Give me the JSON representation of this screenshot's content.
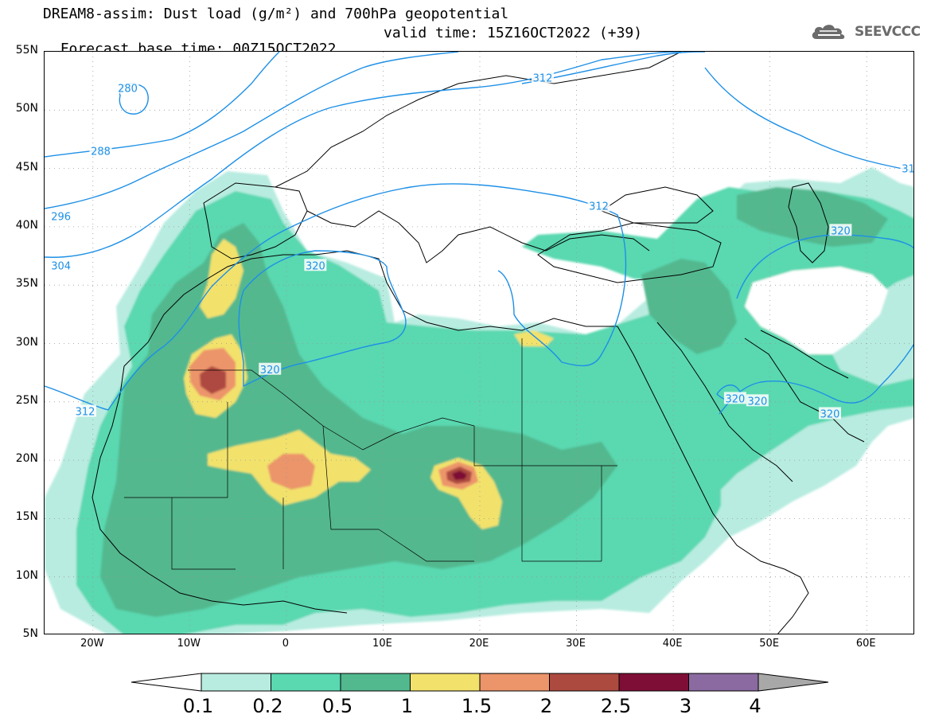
{
  "title": {
    "line1": "DREAM8-assim: Dust load (g/m²) and 700hPa geopotential",
    "line2_base": "Forecast base time: 00Z15OCT2022",
    "line2_valid": "valid time: 15Z16OCT2022 (+39)"
  },
  "logo": {
    "text": "SEEVCCC",
    "icon": "cloud-logo-icon",
    "color": "#6b6b6b"
  },
  "map": {
    "extent": {
      "lon": [
        -25,
        65
      ],
      "lat": [
        5,
        55
      ]
    },
    "lat_ticks": [
      "55N",
      "50N",
      "45N",
      "40N",
      "35N",
      "30N",
      "25N",
      "20N",
      "15N",
      "10N",
      "5N"
    ],
    "lat_values": [
      55,
      50,
      45,
      40,
      35,
      30,
      25,
      20,
      15,
      10,
      5
    ],
    "lon_ticks": [
      "20W",
      "10W",
      "0",
      "10E",
      "20E",
      "30E",
      "40E",
      "50E",
      "60E"
    ],
    "lon_values": [
      -20,
      -10,
      0,
      10,
      20,
      30,
      40,
      50,
      60
    ],
    "contour_color": "#1e90e6",
    "contour_labels": [
      {
        "text": "280",
        "lon": -16.4,
        "lat": 51.9
      },
      {
        "text": "288",
        "lon": -19.2,
        "lat": 46.5
      },
      {
        "text": "296",
        "lon": -23.3,
        "lat": 40.9
      },
      {
        "text": "304",
        "lon": -23.3,
        "lat": 36.7
      },
      {
        "text": "312",
        "lon": 26.5,
        "lat": 52.8
      },
      {
        "text": "312",
        "lon": 32.3,
        "lat": 41.8
      },
      {
        "text": "312",
        "lon": -20.8,
        "lat": 24.2
      },
      {
        "text": "320",
        "lon": 3.0,
        "lat": 36.7
      },
      {
        "text": "320",
        "lon": -1.7,
        "lat": 27.8
      },
      {
        "text": "320",
        "lon": 57.3,
        "lat": 39.7
      },
      {
        "text": "320",
        "lon": 46.4,
        "lat": 25.3
      },
      {
        "text": "320",
        "lon": 48.7,
        "lat": 25.1
      },
      {
        "text": "320",
        "lon": 56.2,
        "lat": 24.0
      },
      {
        "text": "31",
        "lon": 64.3,
        "lat": 45.0
      }
    ]
  },
  "colorbar": {
    "labels": [
      "0.1",
      "0.2",
      "0.5",
      "1",
      "1.5",
      "2",
      "2.5",
      "3",
      "4"
    ],
    "colors": [
      "#ffffff",
      "#b8ece0",
      "#5ad8b0",
      "#52b88e",
      "#f2e26c",
      "#ec946a",
      "#ad4a40",
      "#7e0e36",
      "#8a6aa0",
      "#a8a8a8"
    ]
  },
  "dust": {
    "levels": [
      0.1,
      0.2,
      0.5,
      1,
      1.5,
      2,
      2.5,
      3
    ]
  }
}
